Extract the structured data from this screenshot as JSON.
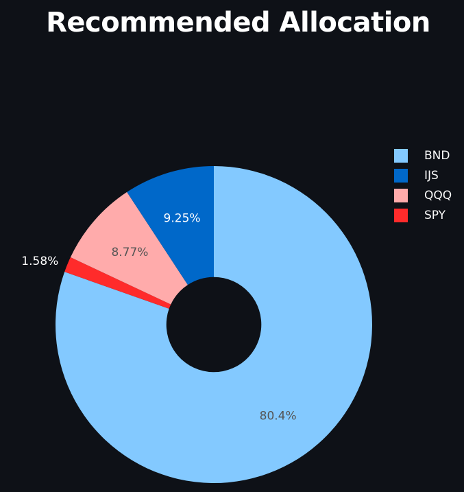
{
  "chart_data": {
    "type": "pie",
    "title": "Recommended Allocation",
    "hole": 0.3,
    "legend_position": "right",
    "slices": [
      {
        "label": "BND",
        "value": 80.4,
        "text": "80.4%",
        "color": "#83c9ff",
        "text_color": "#555555"
      },
      {
        "label": "SPY",
        "value": 1.58,
        "text": "1.58%",
        "color": "#ff2b2b",
        "text_color": "#ffffff"
      },
      {
        "label": "QQQ",
        "value": 8.77,
        "text": "8.77%",
        "color": "#ffabab",
        "text_color": "#555555"
      },
      {
        "label": "IJS",
        "value": 9.25,
        "text": "9.25%",
        "color": "#0068c9",
        "text_color": "#ffffff"
      }
    ],
    "legend_order": [
      "BND",
      "IJS",
      "QQQ",
      "SPY"
    ]
  }
}
